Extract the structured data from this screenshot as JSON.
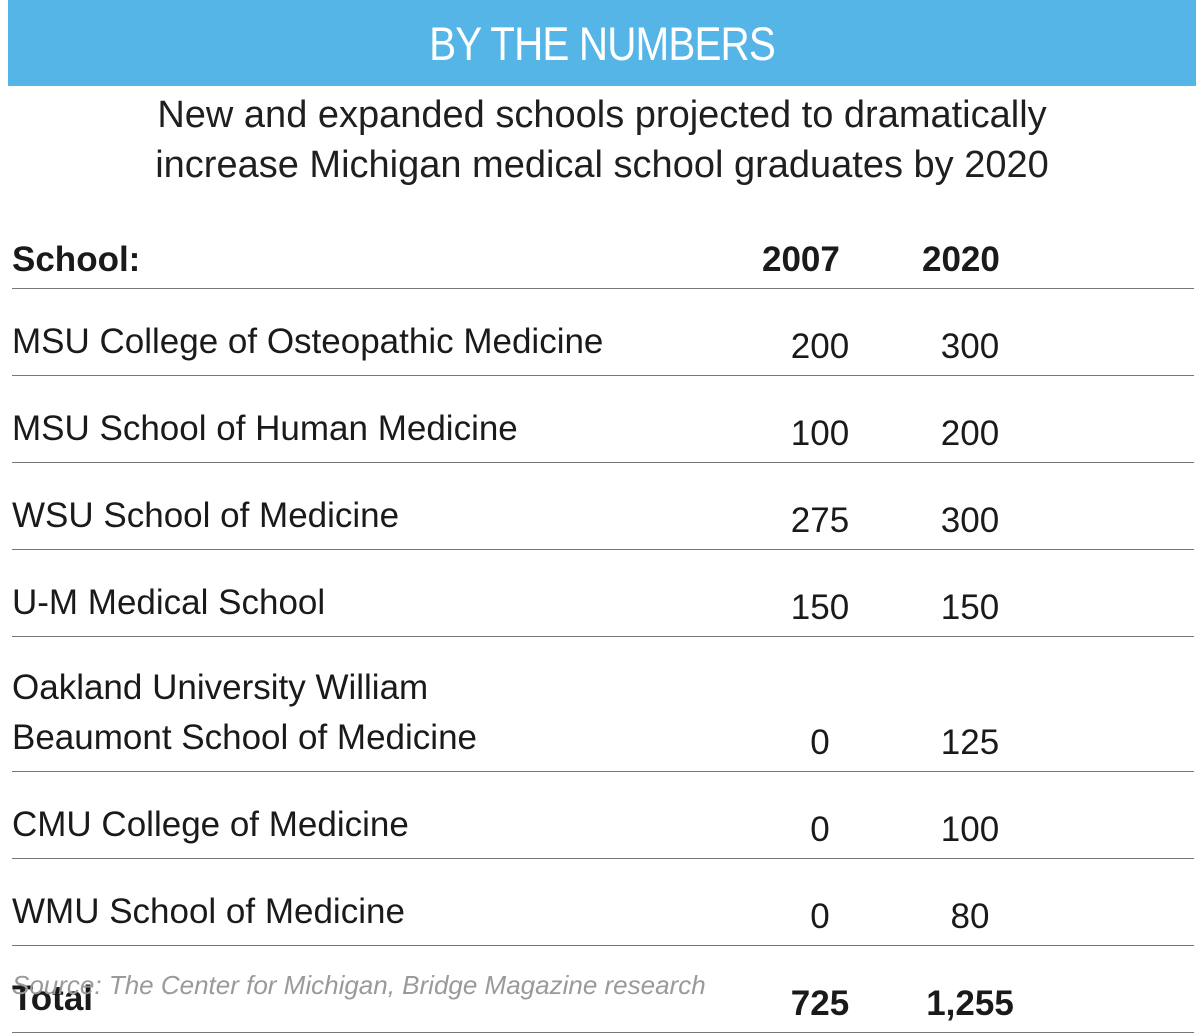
{
  "banner": {
    "title": "BY THE NUMBERS",
    "color": "#55b5e7"
  },
  "subtitle": {
    "line1": "New and expanded schools projected to dramatically",
    "line2": "increase Michigan medical school graduates by 2020"
  },
  "table": {
    "headers": {
      "school": "School:",
      "y2007": "2007",
      "y2020": "2020"
    },
    "rows": [
      {
        "school": "MSU College of Osteopathic Medicine",
        "y2007": "200",
        "y2020": "300"
      },
      {
        "school": "MSU School of Human Medicine",
        "y2007": "100",
        "y2020": "200"
      },
      {
        "school": "WSU School of Medicine",
        "y2007": "275",
        "y2020": "300"
      },
      {
        "school": "U-M Medical School",
        "y2007": "150",
        "y2020": "150"
      },
      {
        "school_line1": "Oakland University William",
        "school_line2": "Beaumont School of Medicine",
        "y2007": "0",
        "y2020": "125"
      },
      {
        "school": "CMU College of Medicine",
        "y2007": "0",
        "y2020": "100"
      },
      {
        "school": "WMU School of Medicine",
        "y2007": "0",
        "y2020": "80"
      }
    ],
    "total": {
      "label": "Total",
      "y2007": "725",
      "y2020": "1,255"
    }
  },
  "source": "Source: The Center for Michigan, Bridge Magazine research"
}
